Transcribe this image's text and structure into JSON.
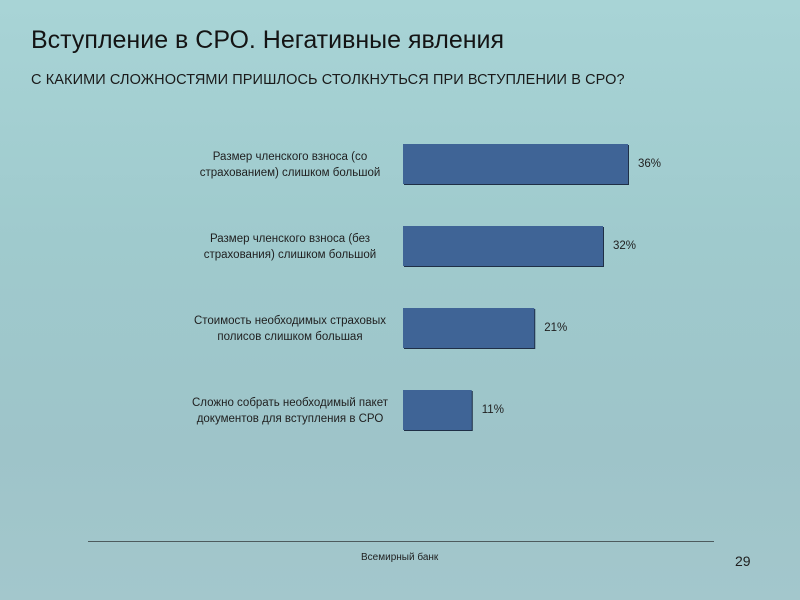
{
  "slide": {
    "title": "Вступление в СРО. Негативные явления",
    "subtitle": "С КАКИМИ СЛОЖНОСТЯМИ ПРИШЛОСЬ СТОЛКНУТЬСЯ ПРИ ВСТУПЛЕНИИ В СРО?",
    "footer": "Всемирный банк",
    "page_number": "29"
  },
  "colors": {
    "bar": "#3f6496",
    "bar_shadow": "#1f2f46"
  },
  "chart_data": {
    "type": "bar",
    "orientation": "horizontal",
    "categories": [
      [
        "Размер членского взноса (со",
        "страхованием) слишком большой"
      ],
      [
        "Размер членского взноса (без",
        "страхования) слишком большой"
      ],
      [
        "Стоимость необходимых страховых",
        "полисов слишком большая"
      ],
      [
        "Сложно собрать необходимый пакет",
        "документов для вступления в СРО"
      ]
    ],
    "values": [
      36,
      32,
      21,
      11
    ],
    "value_labels": [
      "36%",
      "32%",
      "21%",
      "11%"
    ],
    "unit": "%",
    "xlim": [
      0,
      40
    ],
    "grid": false,
    "legend": "none"
  }
}
